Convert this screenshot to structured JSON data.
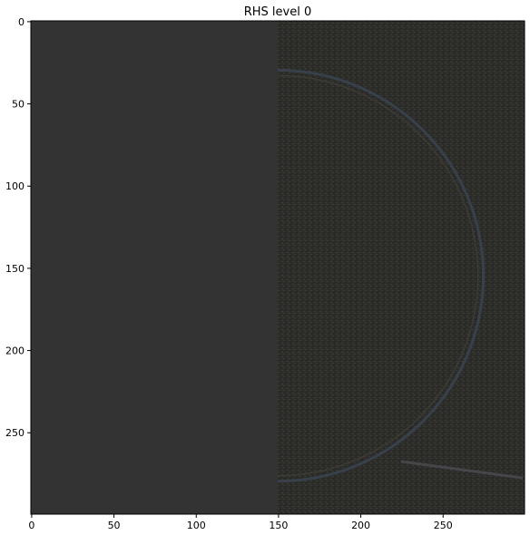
{
  "chart_data": {
    "type": "heatmap",
    "title": "RHS level 0",
    "xlabel": "",
    "ylabel": "",
    "xlim": [
      0,
      299
    ],
    "ylim": [
      299,
      0
    ],
    "x_ticks": [
      0,
      50,
      100,
      150,
      200,
      250
    ],
    "y_ticks": [
      0,
      50,
      100,
      150,
      200,
      250
    ],
    "image_width": 300,
    "image_height": 300,
    "regions": [
      {
        "name": "left-flat",
        "x_range": [
          0,
          150
        ],
        "description": "uniform dark gray"
      },
      {
        "name": "right-textured",
        "x_range": [
          150,
          299
        ],
        "description": "noisy texture with circular edge"
      }
    ],
    "circle": {
      "center_x": 150,
      "center_y": 155,
      "radius": 125
    },
    "line_segment": {
      "x1": 225,
      "y1": 268,
      "x2": 299,
      "y2": 278
    },
    "grid": false,
    "colors": {
      "flat": "#333333",
      "textured": "#2e2e2b",
      "circle_edge": "#3a4250",
      "axes": "#000000"
    }
  }
}
